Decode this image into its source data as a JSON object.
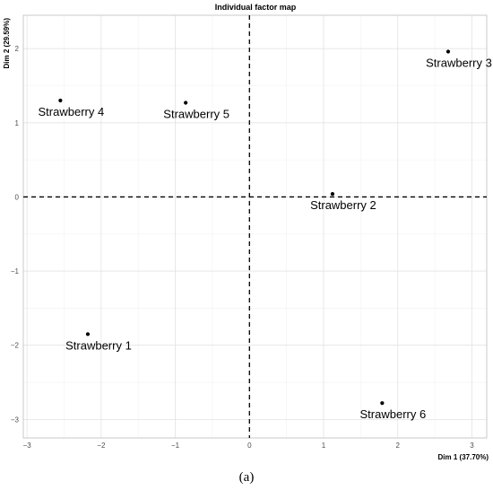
{
  "chart_data": {
    "type": "scatter",
    "title": "Individual factor map",
    "xlabel": "Dim 1 (37.70%)",
    "ylabel": "Dim 2 (29.59%)",
    "xlim": [
      -3.05,
      3.2
    ],
    "ylim": [
      -3.25,
      2.45
    ],
    "x_ticks": [
      -3,
      -2,
      -1,
      0,
      1,
      2,
      3
    ],
    "y_ticks": [
      -3,
      -2,
      -1,
      0,
      1,
      2
    ],
    "grid": true,
    "reference_lines": {
      "x": 0,
      "y": 0,
      "style": "dashed"
    },
    "points": [
      {
        "label": "Strawberry 1",
        "x": -2.18,
        "y": -1.85
      },
      {
        "label": "Strawberry 2",
        "x": 1.12,
        "y": 0.04
      },
      {
        "label": "Strawberry 3",
        "x": 2.68,
        "y": 1.96
      },
      {
        "label": "Strawberry 4",
        "x": -2.55,
        "y": 1.3
      },
      {
        "label": "Strawberry 5",
        "x": -0.86,
        "y": 1.27
      },
      {
        "label": "Strawberry 6",
        "x": 1.79,
        "y": -2.78
      }
    ]
  },
  "caption": "(a)"
}
